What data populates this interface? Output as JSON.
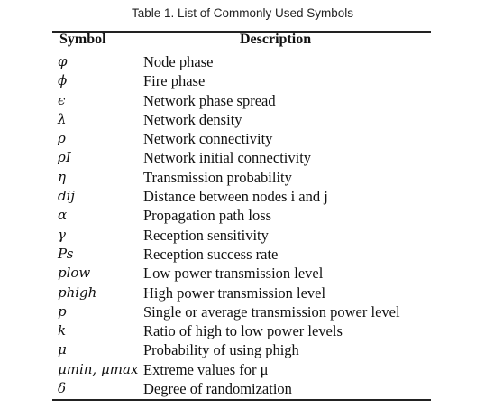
{
  "caption": "Table 1.  List of Commonly Used Symbols",
  "headers": {
    "symbol": "Symbol",
    "description": "Description"
  },
  "rows": [
    {
      "symbol": "φ",
      "description": "Node phase"
    },
    {
      "symbol": "ϕ",
      "description": "Fire phase"
    },
    {
      "symbol": "ϵ",
      "description": "Network phase spread"
    },
    {
      "symbol": "λ",
      "description": "Network density"
    },
    {
      "symbol": "ρ",
      "description": "Network connectivity"
    },
    {
      "symbol": "ρI",
      "description": "Network initial connectivity"
    },
    {
      "symbol": "η",
      "description": "Transmission probability"
    },
    {
      "symbol": "dij",
      "description": "Distance between nodes i and j"
    },
    {
      "symbol": "α",
      "description": "Propagation path loss"
    },
    {
      "symbol": "γ",
      "description": "Reception sensitivity"
    },
    {
      "symbol": "Ps",
      "description": "Reception success rate"
    },
    {
      "symbol": "plow",
      "description": "Low power transmission level"
    },
    {
      "symbol": "phigh",
      "description": "High power transmission level"
    },
    {
      "symbol": "p",
      "description": "Single or average transmission power level"
    },
    {
      "symbol": "k",
      "description": "Ratio of high to low power levels"
    },
    {
      "symbol": "μ",
      "description": "Probability of using phigh"
    },
    {
      "symbol": "μmin, μmax",
      "description": "Extreme values for μ"
    },
    {
      "symbol": "δ",
      "description": "Degree of randomization"
    }
  ]
}
